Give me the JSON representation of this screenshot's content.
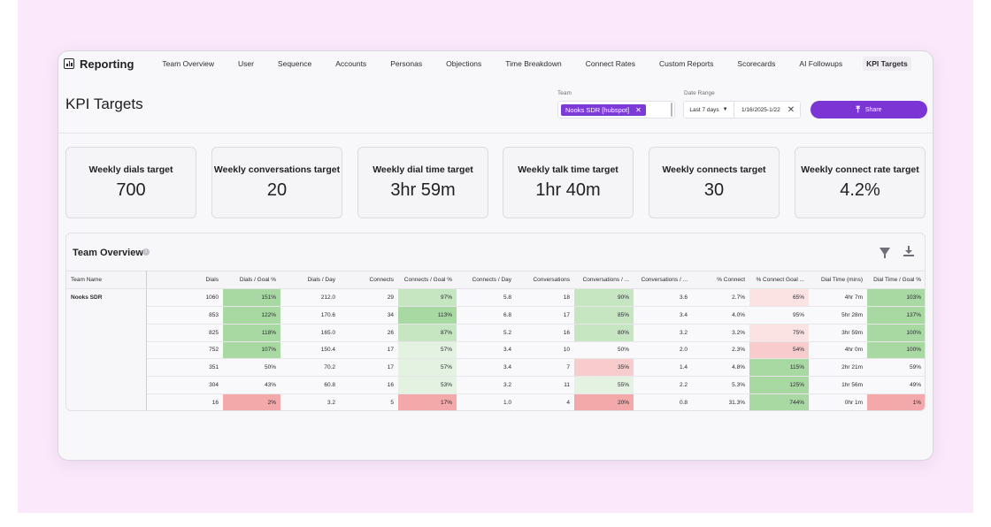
{
  "nav": {
    "brand": "Reporting",
    "items": [
      {
        "label": "Team Overview",
        "active": false
      },
      {
        "label": "User",
        "active": false
      },
      {
        "label": "Sequence",
        "active": false
      },
      {
        "label": "Accounts",
        "active": false
      },
      {
        "label": "Personas",
        "active": false
      },
      {
        "label": "Objections",
        "active": false
      },
      {
        "label": "Time Breakdown",
        "active": false
      },
      {
        "label": "Connect Rates",
        "active": false
      },
      {
        "label": "Custom Reports",
        "active": false
      },
      {
        "label": "Scorecards",
        "active": false
      },
      {
        "label": "AI Followups",
        "active": false
      },
      {
        "label": "KPI Targets",
        "active": true
      }
    ]
  },
  "header": {
    "title": "KPI Targets",
    "team_label": "Team",
    "team_chip": "Nooks SDR [hubspot]",
    "date_label": "Date Range",
    "date_preset": "Last 7 days",
    "date_value": "1/16/2025-1/22",
    "share_label": "Share"
  },
  "kpis": [
    {
      "label": "Weekly dials target",
      "value": "700"
    },
    {
      "label": "Weekly conversations target",
      "value": "20"
    },
    {
      "label": "Weekly dial time target",
      "value": "3hr 59m"
    },
    {
      "label": "Weekly talk time target",
      "value": "1hr 40m"
    },
    {
      "label": "Weekly connects target",
      "value": "30"
    },
    {
      "label": "Weekly connect rate target",
      "value": "4.2%"
    }
  ],
  "overview": {
    "title": "Team Overview",
    "columns": [
      "Team Name",
      "Dials",
      "Dials / Goal %",
      "Dials / Day",
      "Connects",
      "Connects / Goal %",
      "Connects / Day",
      "Conversations",
      "Conversations / ...",
      "Conversations / ...",
      "% Connect",
      "% Connect Goal ...",
      "Dial Time (mins)",
      "Dial Time / Goal %"
    ],
    "team_name": "Nooks SDR",
    "rows": [
      [
        "1060",
        "151%",
        "212.0",
        "29",
        "97%",
        "5.8",
        "18",
        "90%",
        "3.6",
        "2.7%",
        "65%",
        "4hr 7m",
        "103%"
      ],
      [
        "853",
        "122%",
        "170.6",
        "34",
        "113%",
        "6.8",
        "17",
        "85%",
        "3.4",
        "4.0%",
        "95%",
        "5hr 28m",
        "137%"
      ],
      [
        "825",
        "118%",
        "165.0",
        "26",
        "87%",
        "5.2",
        "16",
        "80%",
        "3.2",
        "3.2%",
        "75%",
        "3hr 59m",
        "100%"
      ],
      [
        "752",
        "107%",
        "150.4",
        "17",
        "57%",
        "3.4",
        "10",
        "50%",
        "2.0",
        "2.3%",
        "54%",
        "4hr 0m",
        "100%"
      ],
      [
        "351",
        "50%",
        "70.2",
        "17",
        "57%",
        "3.4",
        "7",
        "35%",
        "1.4",
        "4.8%",
        "115%",
        "2hr 21m",
        "59%"
      ],
      [
        "304",
        "43%",
        "60.8",
        "16",
        "53%",
        "3.2",
        "11",
        "55%",
        "2.2",
        "5.3%",
        "125%",
        "1hr 56m",
        "49%"
      ],
      [
        "16",
        "2%",
        "3.2",
        "5",
        "17%",
        "1.0",
        "4",
        "20%",
        "0.8",
        "31.3%",
        "744%",
        "0hr 1m",
        "1%"
      ]
    ]
  },
  "colors": {
    "accent": "#7a35d4",
    "green_strong": "#a9d9a3",
    "green_mid": "#c6e6c1",
    "green_light": "#e4f3e1",
    "red_light": "#fbe3e3",
    "red_mid": "#f8cccc",
    "red_strong": "#f3a9a9"
  },
  "icons": [
    "reporting-icon",
    "close-icon",
    "chevron-down-icon",
    "upload-icon",
    "info-icon",
    "filter-icon",
    "download-icon"
  ]
}
